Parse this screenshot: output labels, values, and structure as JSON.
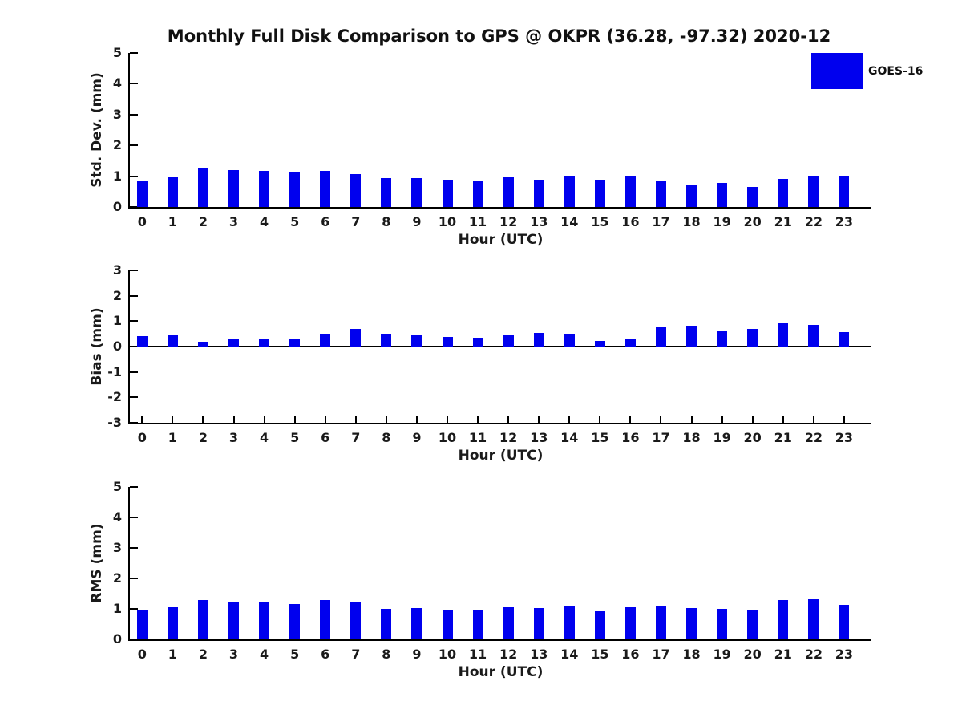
{
  "title": "Monthly Full Disk Comparison to GPS @ OKPR (36.28, -97.32) 2020-12",
  "legend": {
    "label": "GOES-16",
    "color": "#0000EE",
    "position": "top-right"
  },
  "chart_data": [
    {
      "type": "bar",
      "ylabel": "Std. Dev. (mm)",
      "xlabel": "Hour (UTC)",
      "ylim": [
        0,
        5
      ],
      "yticks": [
        0,
        1,
        2,
        3,
        4,
        5
      ],
      "grid": false,
      "zero_line": false,
      "x_tick_marks": false,
      "categories": [
        "0",
        "1",
        "2",
        "3",
        "4",
        "5",
        "6",
        "7",
        "8",
        "9",
        "10",
        "11",
        "12",
        "13",
        "14",
        "15",
        "16",
        "17",
        "18",
        "19",
        "20",
        "21",
        "22",
        "23"
      ],
      "series": [
        {
          "name": "GOES-16",
          "values": [
            0.87,
            0.97,
            1.28,
            1.21,
            1.18,
            1.13,
            1.18,
            1.06,
            0.93,
            0.95,
            0.88,
            0.87,
            0.96,
            0.89,
            0.98,
            0.89,
            1.01,
            0.83,
            0.7,
            0.77,
            0.64,
            0.9,
            1.01,
            1.01
          ]
        }
      ]
    },
    {
      "type": "bar",
      "ylabel": "Bias (mm)",
      "xlabel": "Hour (UTC)",
      "ylim": [
        -3,
        3
      ],
      "yticks": [
        3,
        2,
        1,
        0,
        -1,
        -2,
        -3
      ],
      "grid": false,
      "zero_line": true,
      "x_tick_marks": true,
      "categories": [
        "0",
        "1",
        "2",
        "3",
        "4",
        "5",
        "6",
        "7",
        "8",
        "9",
        "10",
        "11",
        "12",
        "13",
        "14",
        "15",
        "16",
        "17",
        "18",
        "19",
        "20",
        "21",
        "22",
        "23"
      ],
      "series": [
        {
          "name": "GOES-16",
          "values": [
            0.41,
            0.47,
            0.18,
            0.33,
            0.3,
            0.33,
            0.52,
            0.68,
            0.5,
            0.44,
            0.37,
            0.36,
            0.43,
            0.55,
            0.5,
            0.23,
            0.3,
            0.77,
            0.81,
            0.64,
            0.71,
            0.93,
            0.84,
            0.56
          ]
        }
      ]
    },
    {
      "type": "bar",
      "ylabel": "RMS (mm)",
      "xlabel": "Hour (UTC)",
      "ylim": [
        0,
        5
      ],
      "yticks": [
        0,
        1,
        2,
        3,
        4,
        5
      ],
      "grid": false,
      "zero_line": false,
      "x_tick_marks": false,
      "categories": [
        "0",
        "1",
        "2",
        "3",
        "4",
        "5",
        "6",
        "7",
        "8",
        "9",
        "10",
        "11",
        "12",
        "13",
        "14",
        "15",
        "16",
        "17",
        "18",
        "19",
        "20",
        "21",
        "22",
        "23"
      ],
      "series": [
        {
          "name": "GOES-16",
          "values": [
            0.95,
            1.05,
            1.29,
            1.25,
            1.22,
            1.17,
            1.29,
            1.25,
            1.0,
            1.03,
            0.95,
            0.94,
            1.04,
            1.02,
            1.07,
            0.91,
            1.04,
            1.1,
            1.02,
            0.99,
            0.95,
            1.28,
            1.31,
            1.14
          ]
        }
      ]
    }
  ]
}
